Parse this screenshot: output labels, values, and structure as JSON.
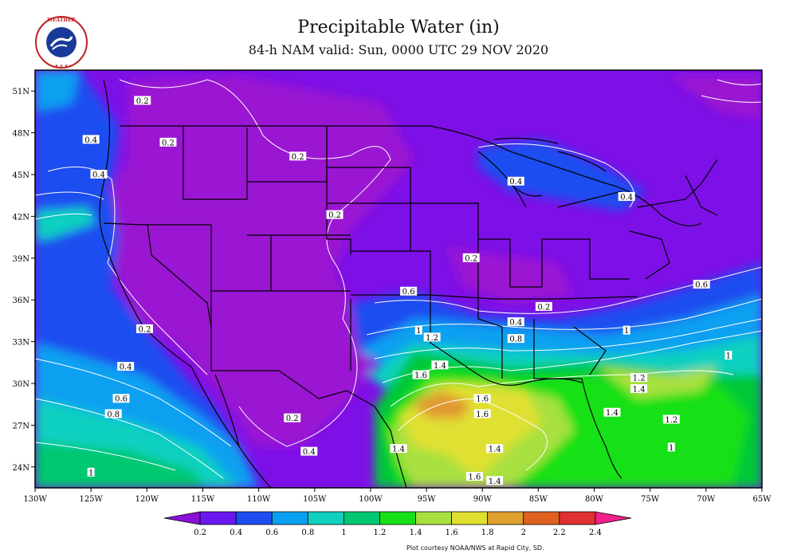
{
  "title": "Precipitable Water (in)",
  "subtitle": "84-h NAM valid: Sun, 0000 UTC 29 NOV 2020",
  "credit": "Plot courtesy NOAA/NWS at Rapid City, SD.",
  "logo_text": "NATIONAL WEATHER SERVICE",
  "colors": {
    "bg_purple": "#7d10e6",
    "purple_deep": "#9a10d0",
    "blue": "#1e4ef0",
    "lightblue": "#0aa0f0",
    "cyan": "#10d0c0",
    "green": "#00c838",
    "bright_green": "#18e018",
    "yellowgreen": "#a8e040",
    "yellow": "#e0e030",
    "orange": "#e09a30"
  },
  "lat_labels": [
    "51N",
    "48N",
    "45N",
    "42N",
    "39N",
    "36N",
    "33N",
    "30N",
    "27N",
    "24N"
  ],
  "lon_labels": [
    "130W",
    "125W",
    "120W",
    "115W",
    "110W",
    "105W",
    "100W",
    "95W",
    "90W",
    "85W",
    "80W",
    "75W",
    "70W",
    "65W"
  ],
  "colorbar": {
    "labels": [
      "0.2",
      "0.4",
      "0.6",
      "0.8",
      "1",
      "1.2",
      "1.4",
      "1.6",
      "1.8",
      "2",
      "2.2",
      "2.4"
    ],
    "colors": [
      "#8a0fd8",
      "#6a18f0",
      "#1e4ef0",
      "#0aa0f0",
      "#10d0c0",
      "#00c870",
      "#18e018",
      "#a8e040",
      "#e0e030",
      "#e0a030",
      "#e06020",
      "#e03030",
      "#f0208a"
    ]
  },
  "contour_labels": [
    {
      "text": "0.2",
      "lon": -120.4,
      "lat": 50.3
    },
    {
      "text": "0.4",
      "lon": -125.0,
      "lat": 47.5
    },
    {
      "text": "0.4",
      "lon": -124.3,
      "lat": 45.0
    },
    {
      "text": "0.2",
      "lon": -118.1,
      "lat": 47.3
    },
    {
      "text": "0.2",
      "lon": -106.5,
      "lat": 46.3
    },
    {
      "text": "0.2",
      "lon": -103.2,
      "lat": 42.1
    },
    {
      "text": "0.4",
      "lon": -87.0,
      "lat": 44.5
    },
    {
      "text": "0.4",
      "lon": -77.1,
      "lat": 43.4
    },
    {
      "text": "0.2",
      "lon": -91.0,
      "lat": 39.0
    },
    {
      "text": "0.6",
      "lon": -96.6,
      "lat": 36.6
    },
    {
      "text": "0.6",
      "lon": -70.4,
      "lat": 37.1
    },
    {
      "text": "0.2",
      "lon": -84.5,
      "lat": 35.5
    },
    {
      "text": "0.4",
      "lon": -87.0,
      "lat": 34.4
    },
    {
      "text": "0.8",
      "lon": -87.0,
      "lat": 33.2
    },
    {
      "text": "1",
      "lon": -95.7,
      "lat": 33.8
    },
    {
      "text": "1.2",
      "lon": -94.5,
      "lat": 33.3
    },
    {
      "text": "1",
      "lon": -77.1,
      "lat": 33.8
    },
    {
      "text": "1",
      "lon": -68.0,
      "lat": 32.0
    },
    {
      "text": "1.4",
      "lon": -93.8,
      "lat": 31.3
    },
    {
      "text": "1.6",
      "lon": -95.5,
      "lat": 30.6
    },
    {
      "text": "1.6",
      "lon": -90.0,
      "lat": 28.9
    },
    {
      "text": "1.6",
      "lon": -90.0,
      "lat": 27.8
    },
    {
      "text": "1.2",
      "lon": -76.0,
      "lat": 30.4
    },
    {
      "text": "1.4",
      "lon": -76.0,
      "lat": 29.6
    },
    {
      "text": "1.4",
      "lon": -78.4,
      "lat": 27.9
    },
    {
      "text": "1.2",
      "lon": -73.1,
      "lat": 27.4
    },
    {
      "text": "1",
      "lon": -73.1,
      "lat": 25.4
    },
    {
      "text": "0.2",
      "lon": -120.2,
      "lat": 33.9
    },
    {
      "text": "0.4",
      "lon": -121.9,
      "lat": 31.2
    },
    {
      "text": "0.6",
      "lon": -122.3,
      "lat": 28.9
    },
    {
      "text": "0.8",
      "lon": -123.0,
      "lat": 27.8
    },
    {
      "text": "0.2",
      "lon": -107.0,
      "lat": 27.5
    },
    {
      "text": "0.4",
      "lon": -105.5,
      "lat": 25.1
    },
    {
      "text": "1.4",
      "lon": -97.5,
      "lat": 25.3
    },
    {
      "text": "1.4",
      "lon": -88.9,
      "lat": 25.3
    },
    {
      "text": "1.6",
      "lon": -90.7,
      "lat": 23.3
    },
    {
      "text": "1.4",
      "lon": -88.9,
      "lat": 23.0
    },
    {
      "text": "1",
      "lon": -125.0,
      "lat": 23.6
    }
  ]
}
